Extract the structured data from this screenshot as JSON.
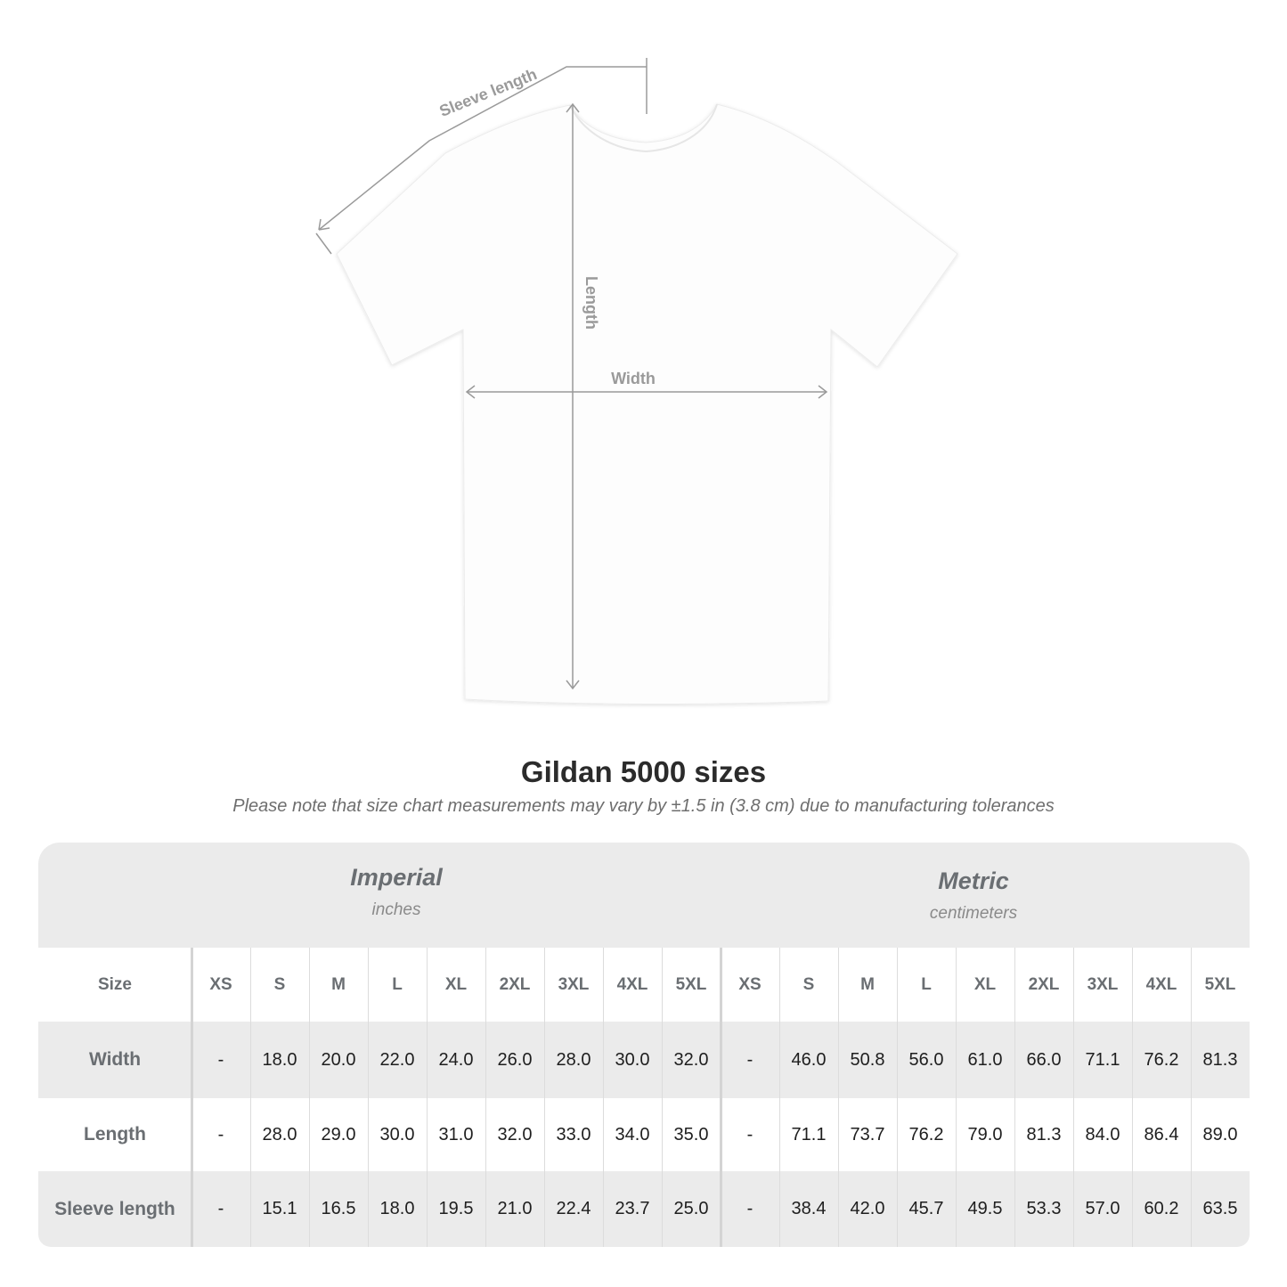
{
  "diagram": {
    "labels": {
      "sleeve": "Sleeve length",
      "length": "Length",
      "width": "Width"
    },
    "line_color": "#9a9a9a"
  },
  "title": "Gildan 5000 sizes",
  "subtitle": "Please note that size chart measurements may vary by ±1.5 in (3.8 cm) due to manufacturing tolerances",
  "table": {
    "imperial": {
      "name": "Imperial",
      "unit": "inches"
    },
    "metric": {
      "name": "Metric",
      "unit": "centimeters"
    },
    "size_label": "Size",
    "sizes": [
      "XS",
      "S",
      "M",
      "L",
      "XL",
      "2XL",
      "3XL",
      "4XL",
      "5XL"
    ],
    "rows": [
      {
        "label": "Width",
        "imperial": [
          "-",
          "18.0",
          "20.0",
          "22.0",
          "24.0",
          "26.0",
          "28.0",
          "30.0",
          "32.0"
        ],
        "metric": [
          "-",
          "46.0",
          "50.8",
          "56.0",
          "61.0",
          "66.0",
          "71.1",
          "76.2",
          "81.3"
        ]
      },
      {
        "label": "Length",
        "imperial": [
          "-",
          "28.0",
          "29.0",
          "30.0",
          "31.0",
          "32.0",
          "33.0",
          "34.0",
          "35.0"
        ],
        "metric": [
          "-",
          "71.1",
          "73.7",
          "76.2",
          "79.0",
          "81.3",
          "84.0",
          "86.4",
          "89.0"
        ]
      },
      {
        "label": "Sleeve length",
        "imperial": [
          "-",
          "15.1",
          "16.5",
          "18.0",
          "19.5",
          "21.0",
          "22.4",
          "23.7",
          "25.0"
        ],
        "metric": [
          "-",
          "38.4",
          "42.0",
          "45.7",
          "49.5",
          "53.3",
          "57.0",
          "60.2",
          "63.5"
        ]
      }
    ],
    "band_color": "#ebebeb"
  }
}
